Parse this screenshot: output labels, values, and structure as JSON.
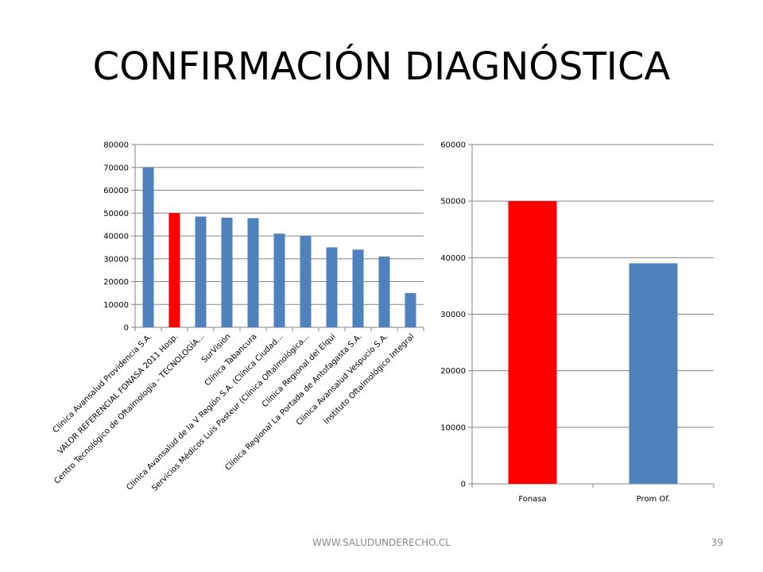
{
  "slide": {
    "title": "CONFIRMACIÓN DIAGNÓSTICA",
    "footer": "WWW.SALUDUNDERECHO.CL",
    "page_number": "39"
  },
  "colors": {
    "blue": "#4f81bd",
    "red": "#ff0000",
    "axis": "#868686",
    "grid": "#868686"
  },
  "chart_data": [
    {
      "type": "bar",
      "categories": [
        "Clinica Avansalud Providencia S.A.",
        "VALOR REFERENCIAL FONASA 2011 Hosp.",
        "Centro Tecnológico de Oftalmología - TECNOLOGÍA...",
        "SurVisión",
        "Clínica Tabancura",
        "Clínica Avansalud de la V Región S.A. (Clínica Ciudad...",
        "Servicios Médicos Luis Pasteur (Clínica Oftalmológica...",
        "Clínica Regional del Elqui",
        "Clínica Regional La Portada de Antofagasta S.A.",
        "Clínica Avansalud Vespucio S.A.",
        "Instituto Oftalmológico Integral"
      ],
      "values": [
        70000,
        50000,
        48500,
        48000,
        47800,
        41000,
        40000,
        35000,
        34000,
        31000,
        15000
      ],
      "highlight_index": 1,
      "ylim": [
        0,
        80000
      ],
      "yticks": [
        "0",
        "10000",
        "20000",
        "30000",
        "40000",
        "50000",
        "60000",
        "70000",
        "80000"
      ],
      "grid": true,
      "legend": "none"
    },
    {
      "type": "bar",
      "categories": [
        "Fonasa",
        "Prom Of."
      ],
      "values": [
        50000,
        39000
      ],
      "highlight_index": 0,
      "ylim": [
        0,
        60000
      ],
      "yticks": [
        "0",
        "10000",
        "20000",
        "30000",
        "40000",
        "50000",
        "60000"
      ],
      "grid": true,
      "legend": "none"
    }
  ]
}
